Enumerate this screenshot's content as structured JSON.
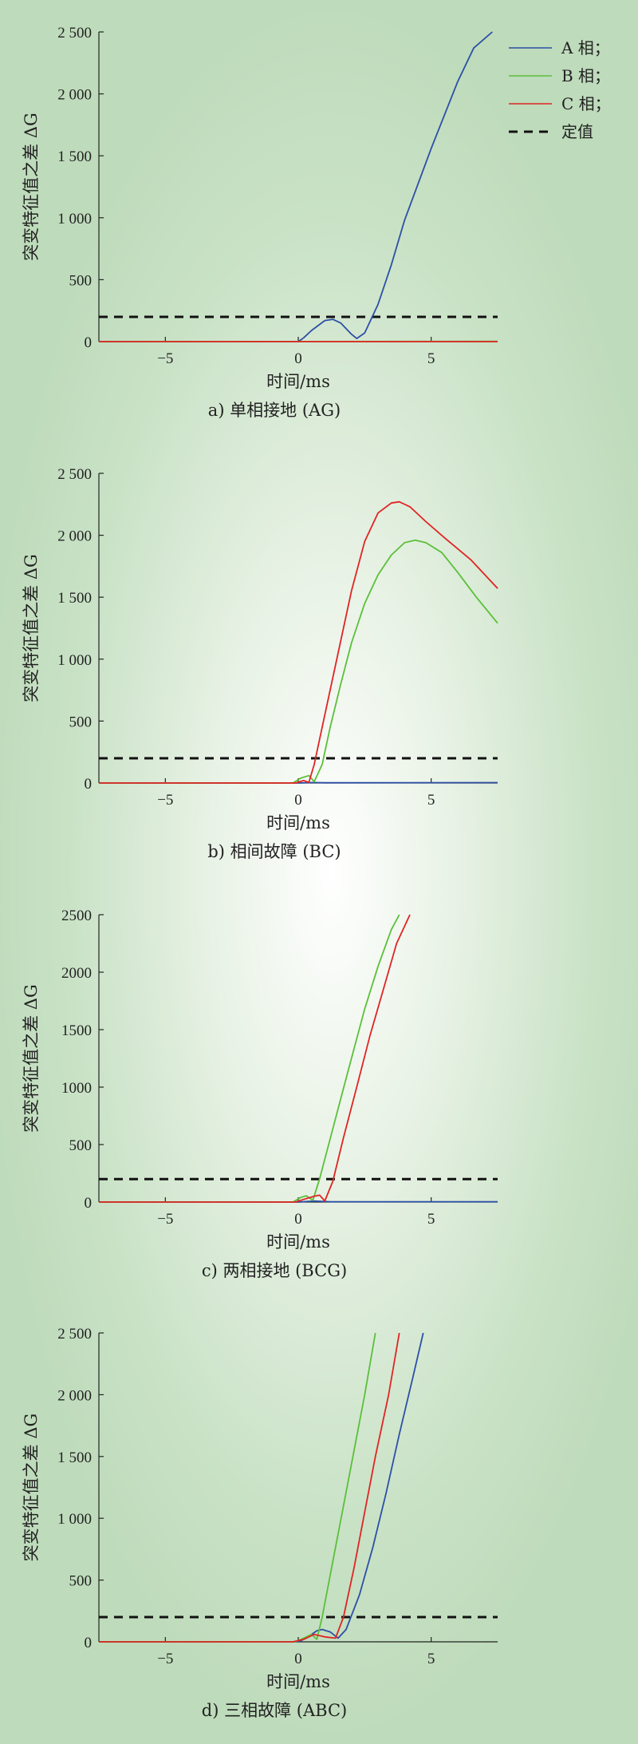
{
  "legend": [
    {
      "label": "A 相；",
      "color": "#2c4fa6",
      "dash": false
    },
    {
      "label": "B 相；",
      "color": "#5bbf3a",
      "dash": false
    },
    {
      "label": "C 相；",
      "color": "#e02424",
      "dash": false
    },
    {
      "label": "定值",
      "color": "#111111",
      "dash": true
    }
  ],
  "chart_data": [
    {
      "type": "line",
      "caption": "a) 单相接地 (AG)",
      "xlabel": "时间/ms",
      "ylabel": "突变特征值之差 ΔG",
      "xlim": [
        -7.5,
        7.5
      ],
      "ylim": [
        0,
        2500
      ],
      "xticks": [
        -5,
        0,
        5
      ],
      "xtick_labels": [
        "−5",
        "0",
        "5"
      ],
      "yticks": [
        0,
        500,
        1000,
        1500,
        2000,
        2500
      ],
      "ytick_labels": [
        "0",
        "500",
        "1 000",
        "1 500",
        "2 000",
        "2 500"
      ],
      "threshold": 200,
      "series": [
        {
          "name": "A 相",
          "color": "#2c4fa6",
          "points": [
            [
              -7.5,
              0
            ],
            [
              0,
              0
            ],
            [
              0.2,
              30
            ],
            [
              0.5,
              90
            ],
            [
              1,
              170
            ],
            [
              1.3,
              180
            ],
            [
              1.6,
              150
            ],
            [
              2,
              60
            ],
            [
              2.2,
              25
            ],
            [
              2.5,
              70
            ],
            [
              3,
              300
            ],
            [
              3.5,
              620
            ],
            [
              4,
              980
            ],
            [
              5,
              1560
            ],
            [
              6,
              2100
            ],
            [
              6.6,
              2370
            ],
            [
              7.3,
              2500
            ]
          ]
        },
        {
          "name": "B 相",
          "color": "#5bbf3a",
          "points": [
            [
              -7.5,
              0
            ],
            [
              7.5,
              2
            ]
          ]
        },
        {
          "name": "C 相",
          "color": "#e02424",
          "points": [
            [
              -7.5,
              0
            ],
            [
              7.5,
              0
            ]
          ]
        }
      ]
    },
    {
      "type": "line",
      "caption": "b) 相间故障 (BC)",
      "xlabel": "时间/ms",
      "ylabel": "突变特征值之差 ΔG",
      "xlim": [
        -7.5,
        7.5
      ],
      "ylim": [
        0,
        2500
      ],
      "xticks": [
        -5,
        0,
        5
      ],
      "xtick_labels": [
        "−5",
        "0",
        "5"
      ],
      "yticks": [
        0,
        500,
        1000,
        1500,
        2000,
        2500
      ],
      "ytick_labels": [
        "0",
        "500",
        "1 000",
        "1 500",
        "2 000",
        "2 500"
      ],
      "threshold": 200,
      "series": [
        {
          "name": "A 相",
          "color": "#2c4fa6",
          "points": [
            [
              -7.5,
              0
            ],
            [
              0,
              0
            ],
            [
              0.5,
              4
            ],
            [
              1,
              2
            ],
            [
              7.5,
              3
            ]
          ]
        },
        {
          "name": "B 相",
          "color": "#5bbf3a",
          "points": [
            [
              -7.5,
              0
            ],
            [
              -0.2,
              0
            ],
            [
              0.1,
              40
            ],
            [
              0.4,
              60
            ],
            [
              0.6,
              10
            ],
            [
              0.9,
              150
            ],
            [
              1.2,
              450
            ],
            [
              1.6,
              800
            ],
            [
              2,
              1130
            ],
            [
              2.5,
              1450
            ],
            [
              3,
              1680
            ],
            [
              3.5,
              1840
            ],
            [
              4,
              1940
            ],
            [
              4.4,
              1960
            ],
            [
              4.8,
              1940
            ],
            [
              5.4,
              1860
            ],
            [
              6,
              1700
            ],
            [
              6.7,
              1500
            ],
            [
              7.5,
              1290
            ]
          ]
        },
        {
          "name": "C 相",
          "color": "#e02424",
          "points": [
            [
              -7.5,
              0
            ],
            [
              -0.1,
              0
            ],
            [
              0.2,
              20
            ],
            [
              0.4,
              5
            ],
            [
              0.6,
              150
            ],
            [
              1,
              550
            ],
            [
              1.5,
              1050
            ],
            [
              2,
              1550
            ],
            [
              2.5,
              1950
            ],
            [
              3,
              2180
            ],
            [
              3.5,
              2260
            ],
            [
              3.8,
              2270
            ],
            [
              4.2,
              2230
            ],
            [
              4.8,
              2110
            ],
            [
              5.5,
              1980
            ],
            [
              6.5,
              1800
            ],
            [
              7.5,
              1570
            ]
          ]
        }
      ]
    },
    {
      "type": "line",
      "caption": "c) 两相接地 (BCG)",
      "xlabel": "时间/ms",
      "ylabel": "突变特征值之差 ΔG",
      "xlim": [
        -7.5,
        7.5
      ],
      "ylim": [
        0,
        2500
      ],
      "xticks": [
        -5,
        0,
        5
      ],
      "xtick_labels": [
        "−5",
        "0",
        "5"
      ],
      "yticks": [
        0,
        500,
        1000,
        1500,
        2000,
        2500
      ],
      "ytick_labels": [
        "0",
        "500",
        "1000",
        "1500",
        "2000",
        "2500"
      ],
      "threshold": 200,
      "series": [
        {
          "name": "A 相",
          "color": "#2c4fa6",
          "points": [
            [
              -7.5,
              0
            ],
            [
              0,
              0
            ],
            [
              0.6,
              8
            ],
            [
              1.2,
              3
            ],
            [
              7.5,
              3
            ]
          ]
        },
        {
          "name": "B 相",
          "color": "#5bbf3a",
          "points": [
            [
              -7.5,
              0
            ],
            [
              -0.2,
              0
            ],
            [
              0.1,
              40
            ],
            [
              0.3,
              55
            ],
            [
              0.55,
              15
            ],
            [
              0.8,
              200
            ],
            [
              1.2,
              550
            ],
            [
              1.6,
              900
            ],
            [
              2,
              1250
            ],
            [
              2.5,
              1680
            ],
            [
              3,
              2050
            ],
            [
              3.5,
              2370
            ],
            [
              3.8,
              2500
            ]
          ]
        },
        {
          "name": "C 相",
          "color": "#e02424",
          "points": [
            [
              -7.5,
              0
            ],
            [
              -0.1,
              0
            ],
            [
              0.3,
              30
            ],
            [
              0.6,
              50
            ],
            [
              0.8,
              60
            ],
            [
              1,
              10
            ],
            [
              1.3,
              180
            ],
            [
              1.7,
              560
            ],
            [
              2.2,
              1000
            ],
            [
              2.7,
              1450
            ],
            [
              3.2,
              1850
            ],
            [
              3.7,
              2250
            ],
            [
              4.2,
              2500
            ]
          ]
        }
      ]
    },
    {
      "type": "line",
      "caption": "d) 三相故障 (ABC)",
      "xlabel": "时间/ms",
      "ylabel": "突变特征值之差 ΔG",
      "xlim": [
        -7.5,
        7.5
      ],
      "ylim": [
        0,
        2500
      ],
      "xticks": [
        -5,
        0,
        5
      ],
      "xtick_labels": [
        "−5",
        "0",
        "5"
      ],
      "yticks": [
        0,
        500,
        1000,
        1500,
        2000,
        2500
      ],
      "ytick_labels": [
        "0",
        "500",
        "1 000",
        "1 500",
        "2 000",
        "2 500"
      ],
      "threshold": 200,
      "series": [
        {
          "name": "A 相",
          "color": "#2c4fa6",
          "points": [
            [
              -7.5,
              0
            ],
            [
              0,
              0
            ],
            [
              0.3,
              30
            ],
            [
              0.7,
              90
            ],
            [
              0.9,
              100
            ],
            [
              1.2,
              80
            ],
            [
              1.5,
              30
            ],
            [
              1.8,
              100
            ],
            [
              2.3,
              380
            ],
            [
              2.8,
              760
            ],
            [
              3.3,
              1200
            ],
            [
              3.8,
              1680
            ],
            [
              4.3,
              2130
            ],
            [
              4.7,
              2500
            ]
          ]
        },
        {
          "name": "B 相",
          "color": "#5bbf3a",
          "points": [
            [
              -7.5,
              0
            ],
            [
              -0.1,
              0
            ],
            [
              0.2,
              30
            ],
            [
              0.5,
              60
            ],
            [
              0.7,
              20
            ],
            [
              0.9,
              200
            ],
            [
              1.3,
              650
            ],
            [
              1.7,
              1100
            ],
            [
              2.1,
              1550
            ],
            [
              2.5,
              2000
            ],
            [
              2.9,
              2500
            ]
          ]
        },
        {
          "name": "C 相",
          "color": "#e02424",
          "points": [
            [
              -7.5,
              0
            ],
            [
              -0.2,
              0
            ],
            [
              0.2,
              20
            ],
            [
              0.6,
              60
            ],
            [
              1,
              40
            ],
            [
              1.4,
              30
            ],
            [
              1.7,
              200
            ],
            [
              2.1,
              600
            ],
            [
              2.5,
              1050
            ],
            [
              2.9,
              1500
            ],
            [
              3.4,
              2000
            ],
            [
              3.8,
              2500
            ]
          ]
        }
      ]
    }
  ]
}
